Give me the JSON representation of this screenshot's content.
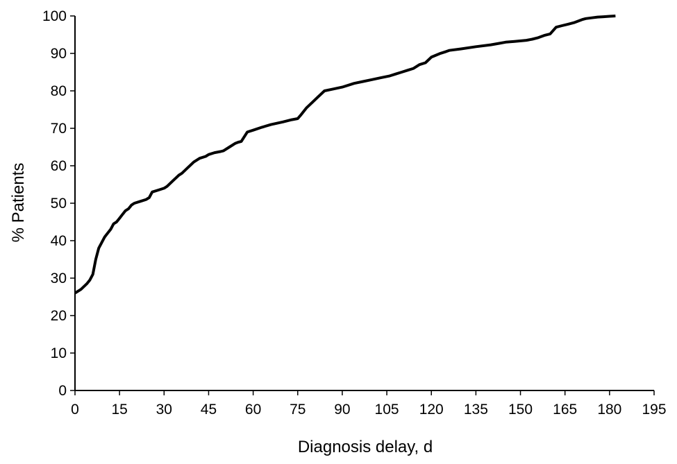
{
  "chart_data": {
    "type": "line",
    "title": "",
    "xlabel": "Diagnosis delay, d",
    "ylabel": "% Patients",
    "xlim": [
      0,
      195
    ],
    "ylim": [
      0,
      100
    ],
    "xticks": [
      0,
      15,
      30,
      45,
      60,
      75,
      90,
      105,
      120,
      135,
      150,
      165,
      180,
      195
    ],
    "yticks": [
      0,
      10,
      20,
      30,
      40,
      50,
      60,
      70,
      80,
      90,
      100
    ],
    "grid": false,
    "legend": "none",
    "line_color": "#000000",
    "series": [
      {
        "x": [
          0,
          2,
          4,
          5,
          6,
          7,
          8,
          9,
          10,
          11,
          12,
          13,
          14,
          15,
          16,
          17,
          18,
          19,
          20,
          22,
          24,
          25,
          26,
          28,
          30,
          31,
          33,
          35,
          36,
          38,
          40,
          42,
          44,
          45,
          47,
          49,
          50,
          52,
          54,
          55,
          56,
          58,
          60,
          63,
          66,
          70,
          73,
          75,
          76,
          78,
          80,
          82,
          84,
          87,
          90,
          94,
          97,
          100,
          103,
          106,
          108,
          110,
          112,
          114,
          116,
          118,
          120,
          123,
          125,
          126,
          130,
          135,
          140,
          143,
          145,
          148,
          152,
          154,
          156,
          158,
          160,
          162,
          164,
          166,
          168,
          170,
          171,
          172,
          174,
          176,
          178,
          180,
          182
        ],
        "y": [
          26,
          27,
          28.5,
          29.5,
          31,
          35,
          38,
          39.5,
          41,
          42,
          43,
          44.5,
          45,
          46,
          47,
          48,
          48.5,
          49.5,
          50,
          50.5,
          51,
          51.5,
          53,
          53.5,
          54,
          54.5,
          56,
          57.5,
          58,
          59.5,
          61,
          62,
          62.5,
          63,
          63.5,
          63.8,
          64,
          65,
          66,
          66.3,
          66.5,
          69,
          69.5,
          70.3,
          71,
          71.7,
          72.3,
          72.6,
          73.5,
          75.5,
          77,
          78.5,
          80,
          80.5,
          81,
          82,
          82.5,
          83,
          83.5,
          84,
          84.5,
          85,
          85.5,
          86,
          87,
          87.5,
          89,
          90,
          90.5,
          90.8,
          91.2,
          91.8,
          92.3,
          92.7,
          93,
          93.2,
          93.5,
          93.8,
          94.2,
          94.8,
          95.2,
          97,
          97.4,
          97.8,
          98.2,
          98.8,
          99.1,
          99.3,
          99.5,
          99.7,
          99.8,
          99.9,
          100
        ]
      }
    ]
  }
}
